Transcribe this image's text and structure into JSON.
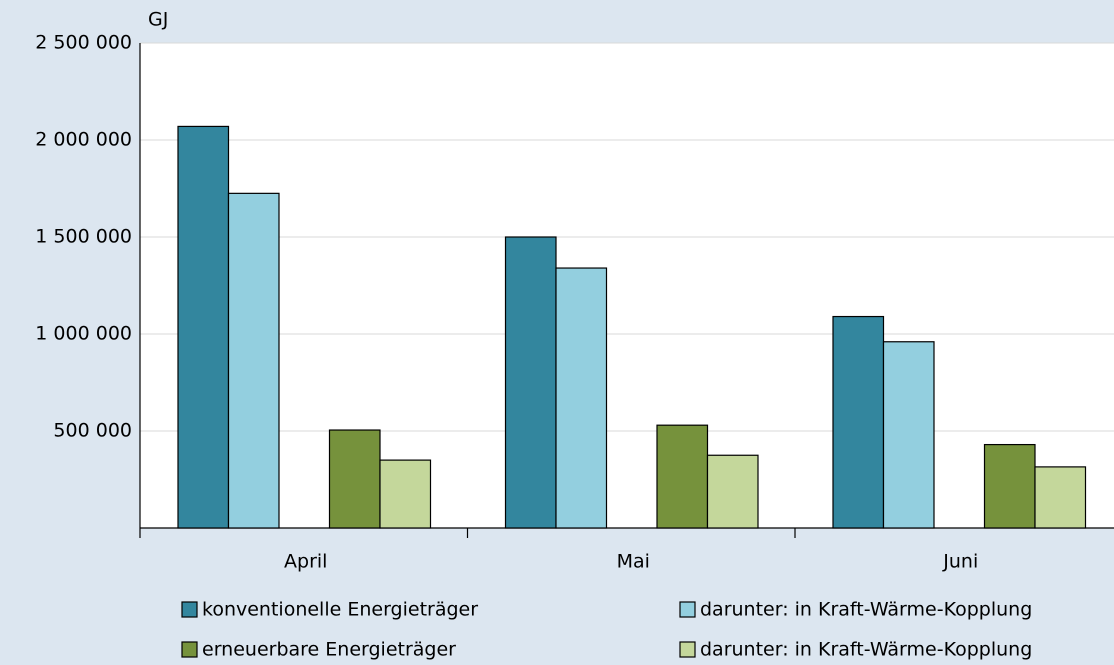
{
  "chart_data": {
    "type": "bar",
    "y_label": "GJ",
    "categories": [
      "April",
      "Mai",
      "Juni"
    ],
    "series": [
      {
        "name": "konventionelle Energieträger",
        "color": "#33869e",
        "values": [
          2070000,
          1500000,
          1090000
        ]
      },
      {
        "name": "darunter: in Kraft-Wärme-Kopplung",
        "color": "#93cfdf",
        "values": [
          1725000,
          1340000,
          960000
        ]
      },
      {
        "name": "erneuerbare Energieträger",
        "color": "#76923c",
        "values": [
          505000,
          530000,
          430000
        ]
      },
      {
        "name": "darunter: in Kraft-Wärme-Kopplung",
        "color": "#c4d79b",
        "values": [
          350000,
          375000,
          315000
        ]
      }
    ],
    "ylim": [
      0,
      2500000
    ],
    "yticks": [
      {
        "value": 500000,
        "label": "500 000"
      },
      {
        "value": 1000000,
        "label": "1 000 000"
      },
      {
        "value": 1500000,
        "label": "1 500 000"
      },
      {
        "value": 2000000,
        "label": "2 000 000"
      },
      {
        "value": 2500000,
        "label": "2 500 000"
      }
    ],
    "grid": true
  }
}
